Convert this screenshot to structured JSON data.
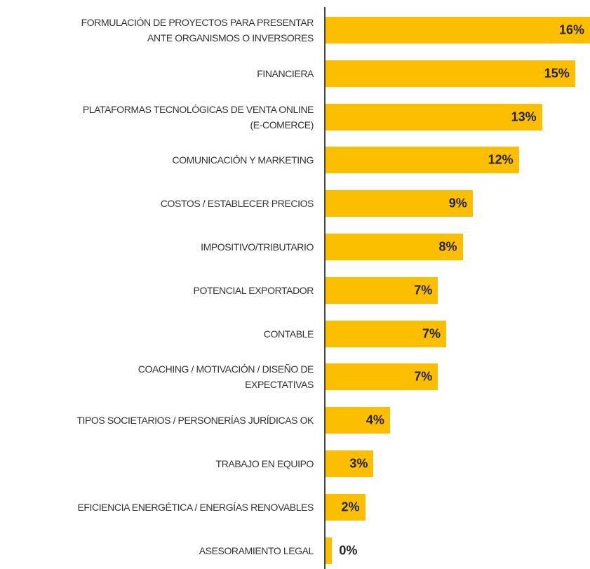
{
  "chart_data": {
    "type": "bar",
    "orientation": "horizontal",
    "color": "#fcbf00",
    "categories": [
      "FORMULACIÓN DE PROYECTOS PARA PRESENTAR\nANTE ORGANISMOS O INVERSORES",
      "FINANCIERA",
      "PLATAFORMAS TECNOLÓGICAS DE VENTA ONLINE\n(E-COMERCE)",
      "COMUNICACIÓN Y MARKETING",
      "COSTOS / ESTABLECER PRECIOS",
      "IMPOSITIVO/TRIBUTARIO",
      "POTENCIAL EXPORTADOR",
      "CONTABLE",
      "COACHING / MOTIVACIÓN / DISEÑO DE\nEXPECTATIVAS",
      "TIPOS SOCIETARIOS / PERSONERÍAS JURÍDICAS OK",
      "TRABAJO EN EQUIPO",
      "EFICIENCIA ENERGÉTICA / ENERGÍAS RENOVABLES",
      "ASESORAMIENTO LEGAL"
    ],
    "values": [
      16,
      15.1,
      13.1,
      11.7,
      8.9,
      8.3,
      6.8,
      7.3,
      6.8,
      3.9,
      2.9,
      2.4,
      0.4
    ],
    "value_labels": [
      "16%",
      "15%",
      "13%",
      "12%",
      "9%",
      "8%",
      "7%",
      "7%",
      "7%",
      "4%",
      "3%",
      "2%",
      "0%"
    ]
  }
}
